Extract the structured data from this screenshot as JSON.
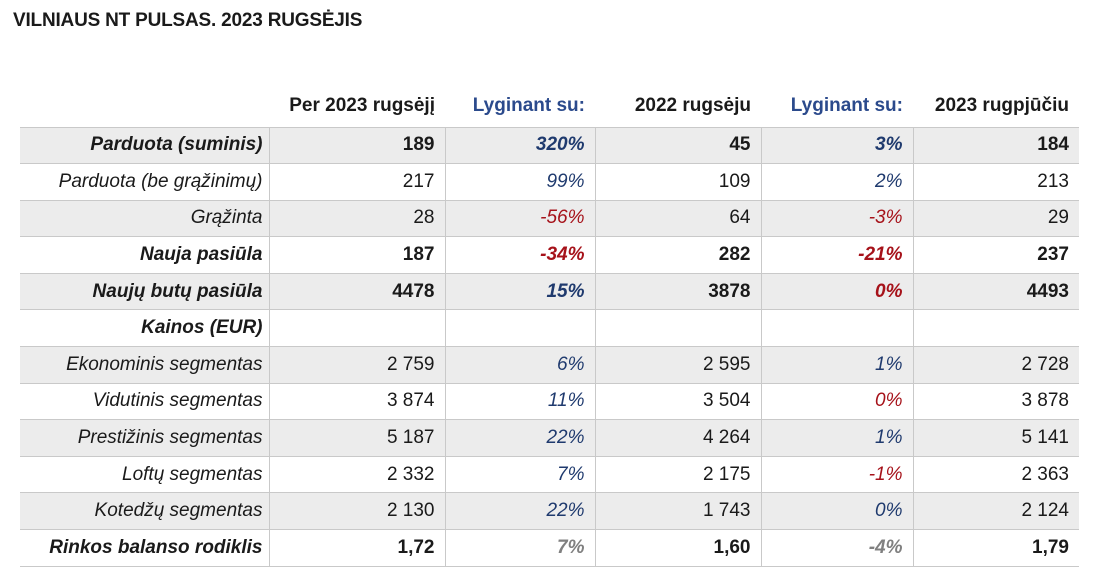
{
  "title": "VILNIAUS NT PULSAS. 2023 RUGSĖJIS",
  "headers": [
    "Per 2023 rugsėjį",
    "Lyginant su:",
    "2022 rugsėju",
    "Lyginant su:",
    "2023 rugpjūčiu"
  ],
  "rows": [
    {
      "label": "Parduota (suminis)",
      "bold": true,
      "shade": true,
      "v1": "189",
      "p1": "320%",
      "c1": "blue",
      "v2": "45",
      "p2": "3%",
      "c2": "blue",
      "v3": "184"
    },
    {
      "label": "Parduota (be grąžinimų)",
      "bold": false,
      "shade": false,
      "v1": "217",
      "p1": "99%",
      "c1": "blue",
      "v2": "109",
      "p2": "2%",
      "c2": "blue",
      "v3": "213"
    },
    {
      "label": "Grąžinta",
      "bold": false,
      "shade": true,
      "v1": "28",
      "p1": "-56%",
      "c1": "red",
      "v2": "64",
      "p2": "-3%",
      "c2": "red",
      "v3": "29"
    },
    {
      "label": "Nauja pasiūla",
      "bold": true,
      "shade": false,
      "v1": "187",
      "p1": "-34%",
      "c1": "red",
      "v2": "282",
      "p2": "-21%",
      "c2": "red",
      "v3": "237"
    },
    {
      "label": "Naujų butų pasiūla",
      "bold": true,
      "shade": true,
      "v1": "4478",
      "p1": "15%",
      "c1": "blue",
      "v2": "3878",
      "p2": "0%",
      "c2": "red",
      "v3": "4493"
    },
    {
      "label": "Kainos (EUR)",
      "bold": true,
      "shade": false,
      "v1": "",
      "p1": "",
      "c1": "blue",
      "v2": "",
      "p2": "",
      "c2": "blue",
      "v3": ""
    },
    {
      "label": "Ekonominis segmentas",
      "bold": false,
      "shade": true,
      "v1": "2 759",
      "p1": "6%",
      "c1": "blue",
      "v2": "2 595",
      "p2": "1%",
      "c2": "blue",
      "v3": "2 728"
    },
    {
      "label": "Vidutinis segmentas",
      "bold": false,
      "shade": false,
      "v1": "3 874",
      "p1": "11%",
      "c1": "blue",
      "v2": "3 504",
      "p2": "0%",
      "c2": "red",
      "v3": "3 878"
    },
    {
      "label": "Prestižinis segmentas",
      "bold": false,
      "shade": true,
      "v1": "5 187",
      "p1": "22%",
      "c1": "blue",
      "v2": "4 264",
      "p2": "1%",
      "c2": "blue",
      "v3": "5 141"
    },
    {
      "label": "Loftų segmentas",
      "bold": false,
      "shade": false,
      "v1": "2 332",
      "p1": "7%",
      "c1": "blue",
      "v2": "2 175",
      "p2": "-1%",
      "c2": "red",
      "v3": "2 363"
    },
    {
      "label": "Kotedžų segmentas",
      "bold": false,
      "shade": true,
      "v1": "2 130",
      "p1": "22%",
      "c1": "blue",
      "v2": "1 743",
      "p2": "0%",
      "c2": "blue",
      "v3": "2 124"
    },
    {
      "label": "Rinkos balanso rodiklis",
      "bold": true,
      "shade": false,
      "v1": "1,72",
      "p1": "7%",
      "c1": "gray",
      "v2": "1,60",
      "p2": "-4%",
      "c2": "gray",
      "v3": "1,79"
    }
  ]
}
